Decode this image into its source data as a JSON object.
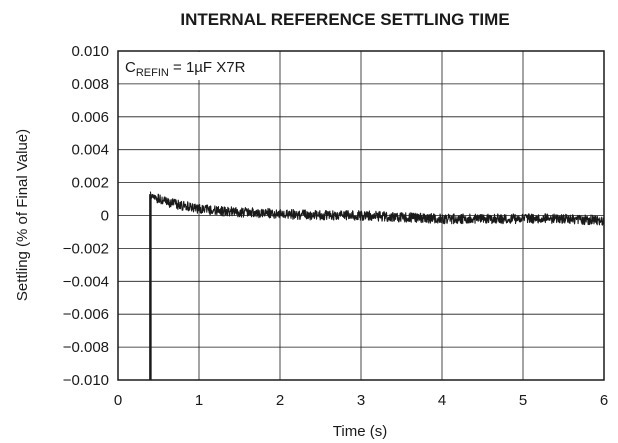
{
  "chart_data": {
    "type": "line",
    "title": "INTERNAL REFERENCE SETTLING TIME",
    "xlabel": "Time (s)",
    "ylabel": "Settling (% of Final Value)",
    "xlim": [
      0,
      6
    ],
    "ylim": [
      -0.01,
      0.01
    ],
    "xticks": [
      0,
      1,
      2,
      3,
      4,
      5,
      6
    ],
    "xtick_labels": [
      "0",
      "1",
      "2",
      "3",
      "4",
      "5",
      "6"
    ],
    "yticks": [
      0.01,
      0.008,
      0.006,
      0.004,
      0.002,
      0,
      -0.002,
      -0.004,
      -0.006,
      -0.008,
      -0.01
    ],
    "ytick_labels": [
      "0.010",
      "0.008",
      "0.006",
      "0.004",
      "0.002",
      "0",
      "−0.002",
      "−0.004",
      "−0.006",
      "−0.008",
      "−0.010"
    ],
    "grid": true,
    "annotation": {
      "main": "C",
      "sub": "REFIN",
      "rest": " = 1µF X7R"
    },
    "series": [
      {
        "color": "#1a1a1a",
        "x": [
          0.4,
          0.4,
          0.42,
          0.5,
          0.6,
          0.8,
          1.0,
          1.2,
          1.5,
          2.0,
          2.5,
          3.0,
          3.5,
          4.0,
          4.5,
          5.0,
          5.5,
          6.0
        ],
        "y": [
          -0.01,
          0.0013,
          0.0012,
          0.001,
          0.0008,
          0.0006,
          0.0004,
          0.0003,
          0.0002,
          0.0001,
          0.0,
          0.0,
          -0.0001,
          -0.0002,
          -0.0002,
          -0.0002,
          -0.0002,
          -0.0003
        ],
        "noise_amplitude": 0.0003
      }
    ]
  }
}
